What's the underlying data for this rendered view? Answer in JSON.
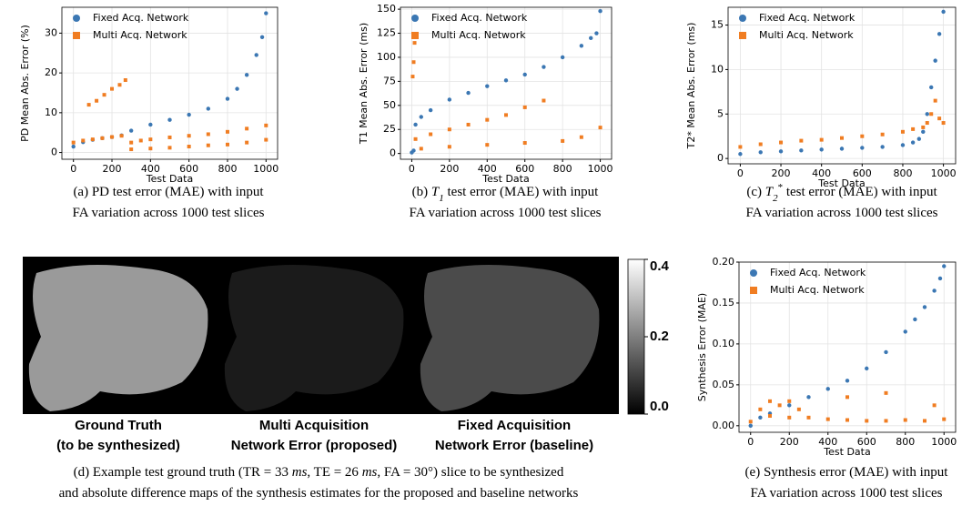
{
  "chart_data": [
    {
      "type": "scatter",
      "ylabel": "PD Mean Abs. Error (%)",
      "xlabel": "Test Data",
      "xlim": [
        -60,
        1060
      ],
      "xticks": [
        0,
        200,
        400,
        600,
        800,
        1000
      ],
      "ylim": [
        -1.7,
        36.5
      ],
      "yticks": [
        0,
        10,
        20,
        30
      ],
      "grid": true,
      "legend": "upper-left",
      "series": [
        {
          "name": "Fixed Acq. Network",
          "color": "#3b77b3",
          "marker": "circle",
          "x": [
            0,
            50,
            100,
            150,
            200,
            250,
            300,
            400,
            500,
            600,
            700,
            800,
            850,
            900,
            950,
            980,
            1000
          ],
          "values": [
            1.5,
            2.6,
            3.2,
            3.6,
            3.9,
            4.3,
            5.5,
            7.0,
            8.2,
            9.5,
            11.0,
            13.5,
            16.0,
            19.5,
            24.5,
            29,
            35
          ]
        },
        {
          "name": "Multi Acq. Network",
          "color": "#f07d22",
          "marker": "square",
          "x": [
            0,
            50,
            100,
            150,
            200,
            250,
            300,
            350,
            400,
            500,
            600,
            700,
            800,
            900,
            1000,
            80,
            120,
            160,
            200,
            240,
            270,
            300,
            400,
            500,
            600,
            700,
            800,
            900,
            1000
          ],
          "values": [
            2.5,
            3,
            3.3,
            3.6,
            3.9,
            4.2,
            2.5,
            3.0,
            3.3,
            3.8,
            4.2,
            4.6,
            5.2,
            6,
            6.8,
            12,
            13,
            14.5,
            16,
            17,
            18.2,
            0.8,
            1.0,
            1.2,
            1.5,
            1.8,
            2.0,
            2.5,
            3.2
          ]
        }
      ],
      "caption": [
        [
          {
            "text": "(a) PD test error (MAE) with input"
          }
        ],
        [
          {
            "text": "FA variation across 1000 test  slices"
          }
        ]
      ]
    },
    {
      "type": "scatter",
      "ylabel": "T1 Mean Abs. Error (ms)",
      "xlabel": "Test Data",
      "xlim": [
        -60,
        1060
      ],
      "xticks": [
        0,
        200,
        400,
        600,
        800,
        1000
      ],
      "ylim": [
        -6,
        152
      ],
      "yticks": [
        0,
        25,
        50,
        75,
        100,
        125,
        150
      ],
      "grid": true,
      "legend": "upper-left",
      "series": [
        {
          "name": "Fixed Acq. Network",
          "color": "#3b77b3",
          "marker": "circle",
          "x": [
            0,
            10,
            20,
            50,
            100,
            200,
            300,
            400,
            500,
            600,
            700,
            800,
            900,
            950,
            980,
            1000
          ],
          "values": [
            1,
            3,
            30,
            38,
            45,
            56,
            63,
            70,
            76,
            82,
            90,
            100,
            112,
            120,
            125,
            148
          ]
        },
        {
          "name": "Multi Acq. Network",
          "color": "#f07d22",
          "marker": "square",
          "x": [
            5,
            10,
            15,
            20,
            100,
            200,
            300,
            400,
            500,
            600,
            700,
            50,
            200,
            400,
            600,
            800,
            900,
            1000
          ],
          "values": [
            80,
            95,
            115,
            15,
            20,
            25,
            30,
            35,
            40,
            48,
            55,
            5,
            7,
            9,
            11,
            13,
            17,
            27
          ]
        }
      ],
      "caption": [
        [
          {
            "text": "(b) "
          },
          {
            "text": "T",
            "style": "italic"
          },
          {
            "text": "1",
            "style": "sub"
          },
          {
            "text": " test error (MAE) with input"
          }
        ],
        [
          {
            "text": "FA variation across 1000 test  slices"
          }
        ]
      ]
    },
    {
      "type": "scatter",
      "ylabel": "T2* Mean Abs. Error (ms)",
      "xlabel": "Test Data",
      "xlim": [
        -60,
        1060
      ],
      "xticks": [
        0,
        200,
        400,
        600,
        800,
        1000
      ],
      "ylim": [
        -0.6,
        17
      ],
      "yticks": [
        0,
        5,
        10,
        15
      ],
      "grid": true,
      "legend": "upper-left",
      "series": [
        {
          "name": "Fixed Acq. Network",
          "color": "#3b77b3",
          "marker": "circle",
          "x": [
            0,
            100,
            200,
            300,
            400,
            500,
            600,
            700,
            800,
            850,
            880,
            900,
            920,
            940,
            960,
            980,
            1000
          ],
          "values": [
            0.5,
            0.7,
            0.8,
            0.9,
            1.0,
            1.1,
            1.2,
            1.3,
            1.5,
            1.8,
            2.2,
            3,
            5,
            8,
            11,
            14,
            16.5
          ]
        },
        {
          "name": "Multi Acq. Network",
          "color": "#f07d22",
          "marker": "square",
          "x": [
            0,
            100,
            200,
            300,
            400,
            500,
            600,
            700,
            800,
            850,
            900,
            920,
            940,
            960,
            980,
            1000
          ],
          "values": [
            1.3,
            1.6,
            1.8,
            2.0,
            2.1,
            2.3,
            2.5,
            2.7,
            3.0,
            3.3,
            3.5,
            4,
            5,
            6.5,
            4.5,
            4
          ]
        }
      ],
      "caption": [
        [
          {
            "text": "(c) "
          },
          {
            "text": "T",
            "style": "italic"
          },
          {
            "text": "2",
            "style": "sub"
          },
          {
            "text": "*",
            "style": "sup"
          },
          {
            "text": " test error (MAE) with input"
          }
        ],
        [
          {
            "text": "FA variation across 1000 test  slices"
          }
        ]
      ]
    },
    {
      "type": "image",
      "labels": [
        [
          "Ground Truth",
          "(to be synthesized)"
        ],
        [
          "Multi Acquisition",
          "Network Error (proposed)"
        ],
        [
          "Fixed Acquisition",
          "Network Error (baseline)"
        ]
      ],
      "clim": [
        0,
        0.4
      ],
      "cticks": [
        {
          "value": 0,
          "label": "0.0"
        },
        0.2,
        0.4
      ],
      "caption": [
        [
          {
            "text": "(d) Example test ground truth (TR = 33 "
          },
          {
            "text": "ms",
            "style": "italic"
          },
          {
            "text": ", TE = 26 "
          },
          {
            "text": "ms",
            "style": "italic"
          },
          {
            "text": ", FA = 30°) slice to be synthesized"
          }
        ],
        [
          {
            "text": "and absolute difference maps of the synthesis estimates for the proposed and baseline networks"
          }
        ]
      ]
    },
    {
      "type": "scatter",
      "ylabel": "Synthesis Error (MAE)",
      "xlabel": "Test Data",
      "xlim": [
        -60,
        1060
      ],
      "xticks": [
        0,
        200,
        400,
        600,
        800,
        1000
      ],
      "ylim": [
        -0.008,
        0.2
      ],
      "yticks": [
        {
          "value": 0,
          "label": "0.00"
        },
        {
          "value": 0.05,
          "label": "0.05"
        },
        {
          "value": 0.1,
          "label": "0.10"
        },
        {
          "value": 0.15,
          "label": "0.15"
        },
        {
          "value": 0.2,
          "label": "0.20"
        }
      ],
      "grid": true,
      "legend": "upper-left",
      "series": [
        {
          "name": "Fixed Acq. Network",
          "color": "#3b77b3",
          "marker": "circle",
          "x": [
            0,
            50,
            100,
            200,
            300,
            400,
            500,
            600,
            700,
            800,
            850,
            900,
            950,
            980,
            1000
          ],
          "values": [
            0.0,
            0.01,
            0.015,
            0.025,
            0.035,
            0.045,
            0.055,
            0.07,
            0.09,
            0.115,
            0.13,
            0.145,
            0.165,
            0.18,
            0.195
          ]
        },
        {
          "name": "Multi Acq. Network",
          "color": "#f07d22",
          "marker": "square",
          "x": [
            0,
            50,
            100,
            150,
            200,
            250,
            300,
            400,
            500,
            600,
            700,
            800,
            900,
            1000,
            100,
            200,
            500,
            700,
            950
          ],
          "values": [
            0.005,
            0.02,
            0.03,
            0.025,
            0.03,
            0.02,
            0.01,
            0.008,
            0.007,
            0.006,
            0.006,
            0.007,
            0.006,
            0.008,
            0.012,
            0.01,
            0.035,
            0.04,
            0.025
          ]
        }
      ],
      "caption": [
        [
          {
            "text": "(e) Synthesis error (MAE) with input"
          }
        ],
        [
          {
            "text": "FA variation across 1000 test  slices"
          }
        ]
      ]
    }
  ]
}
